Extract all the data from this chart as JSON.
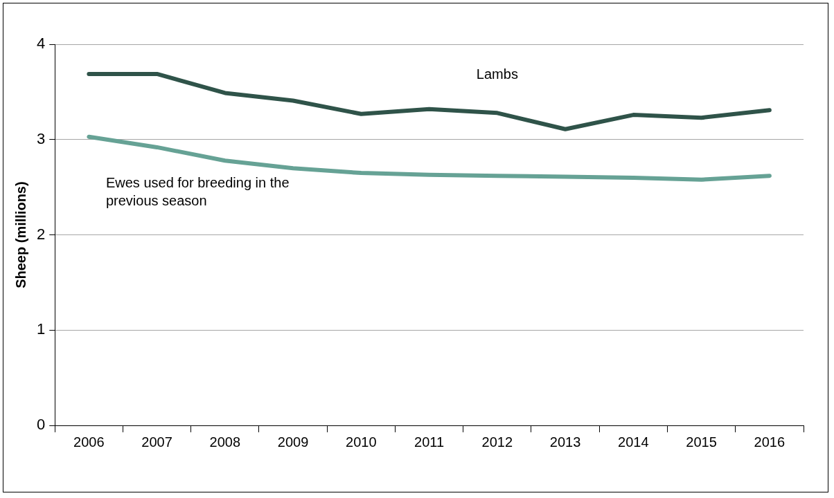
{
  "chart_data": {
    "type": "line",
    "ylabel": "Sheep (millions)",
    "categories": [
      "2006",
      "2007",
      "2008",
      "2009",
      "2010",
      "2011",
      "2012",
      "2013",
      "2014",
      "2015",
      "2016"
    ],
    "series": [
      {
        "name": "Lambs",
        "color": "#2f5349",
        "values": [
          3.69,
          3.69,
          3.49,
          3.41,
          3.27,
          3.32,
          3.28,
          3.11,
          3.26,
          3.23,
          3.31
        ]
      },
      {
        "name": "Ewes used for breeding in the previous season",
        "color": "#66a295",
        "values": [
          3.03,
          2.92,
          2.78,
          2.7,
          2.65,
          2.63,
          2.62,
          2.61,
          2.6,
          2.58,
          2.62
        ]
      }
    ],
    "ylim": [
      0,
      4
    ],
    "yticks": [
      0,
      1,
      2,
      3,
      4
    ],
    "grid": "y",
    "legend": false,
    "marker": "none",
    "line_style": "solid"
  }
}
